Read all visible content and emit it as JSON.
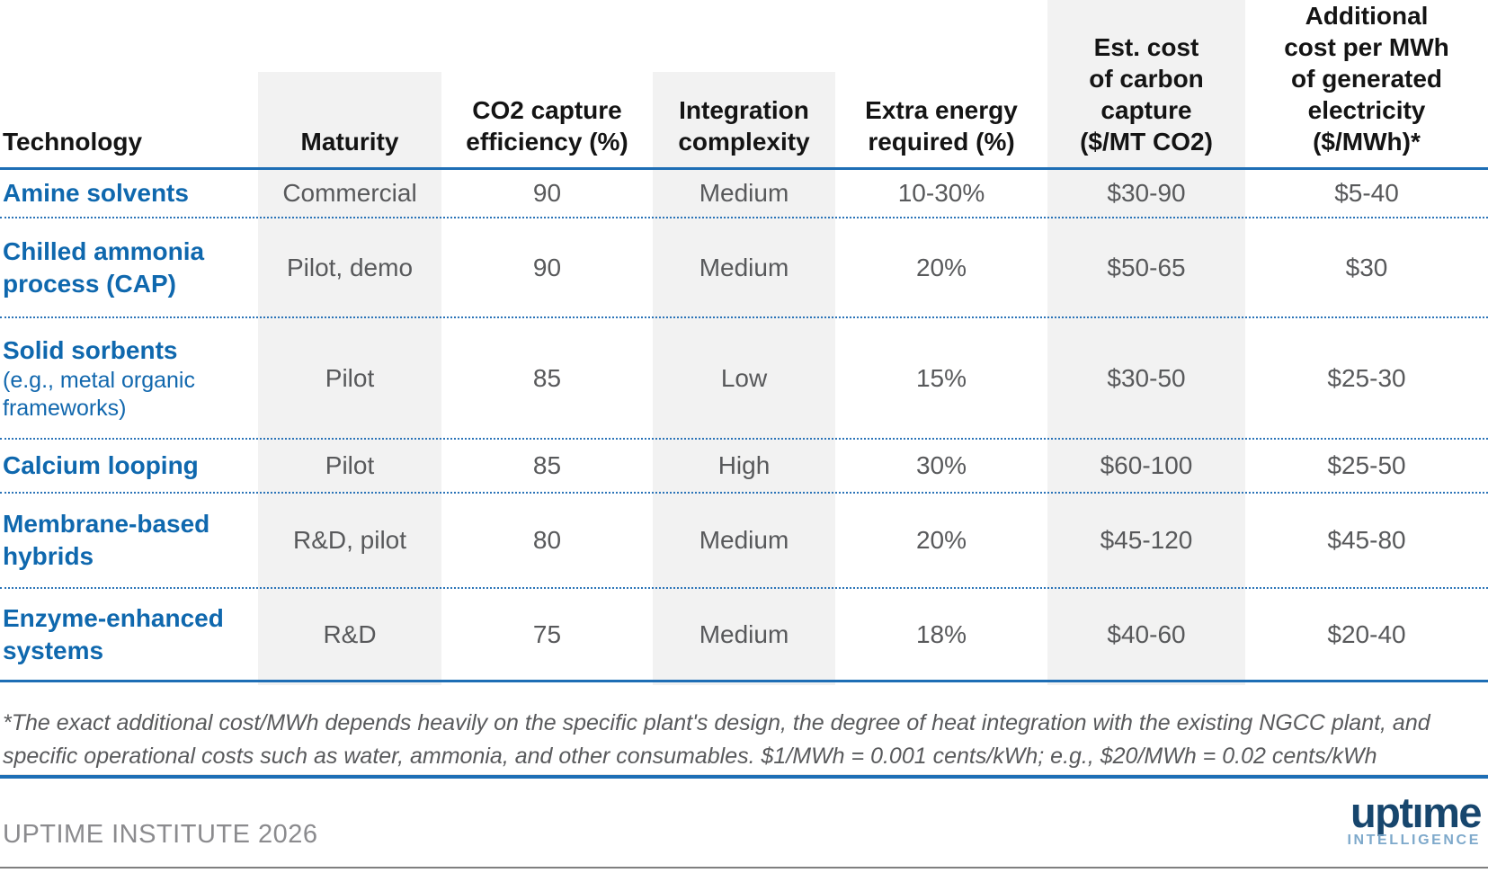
{
  "accent_colors": {
    "line_blue": "#1e6eb5",
    "technology_blue": "#0f68ae",
    "cell_text_gray": "#58595b",
    "stripe_gray": "#f2f2f2",
    "footer_text_gray": "#8b8b8e",
    "logo_navy": "#17466d",
    "logo_light_blue": "#7ea9cb"
  },
  "header": {
    "columns": [
      {
        "label": "Technology"
      },
      {
        "label": "Maturity"
      },
      {
        "label": "CO2 capture\nefficiency (%)"
      },
      {
        "label": "Integration\ncomplexity"
      },
      {
        "label": "Extra energy\nrequired (%)"
      },
      {
        "label": "Est. cost\nof carbon\ncapture\n($/MT CO2)"
      },
      {
        "label": "Additional\ncost per MWh\nof generated\nelectricity\n($/MWh)*"
      }
    ]
  },
  "table": {
    "rows": [
      {
        "technology": "Amine solvents",
        "technology_sub": "",
        "maturity": "Commercial",
        "efficiency": "90",
        "complexity": "Medium",
        "extra_energy": "10-30%",
        "cost_capture": "$30-90",
        "cost_mwh": "$5-40"
      },
      {
        "technology": "Chilled ammonia process (CAP)",
        "technology_sub": "",
        "maturity": "Pilot, demo",
        "efficiency": "90",
        "complexity": "Medium",
        "extra_energy": "20%",
        "cost_capture": "$50-65",
        "cost_mwh": "$30"
      },
      {
        "technology": "Solid sorbents",
        "technology_sub": "(e.g., metal organic frameworks)",
        "maturity": "Pilot",
        "efficiency": "85",
        "complexity": "Low",
        "extra_energy": "15%",
        "cost_capture": "$30-50",
        "cost_mwh": "$25-30"
      },
      {
        "technology": "Calcium looping",
        "technology_sub": "",
        "maturity": "Pilot",
        "efficiency": "85",
        "complexity": "High",
        "extra_energy": "30%",
        "cost_capture": "$60-100",
        "cost_mwh": "$25-50"
      },
      {
        "technology": "Membrane-based hybrids",
        "technology_sub": "",
        "maturity": "R&D, pilot",
        "efficiency": "80",
        "complexity": "Medium",
        "extra_energy": "20%",
        "cost_capture": "$45-120",
        "cost_mwh": "$45-80"
      },
      {
        "technology": "Enzyme-enhanced systems",
        "technology_sub": "",
        "maturity": "R&D",
        "efficiency": "75",
        "complexity": "Medium",
        "extra_energy": "18%",
        "cost_capture": "$40-60",
        "cost_mwh": "$20-40"
      }
    ]
  },
  "chart_data": {
    "type": "table",
    "columns": [
      "Technology",
      "Maturity",
      "CO2 capture efficiency (%)",
      "Integration complexity",
      "Extra energy required (%)",
      "Est. cost of carbon capture ($/MT CO2)",
      "Additional cost per MWh of generated electricity ($/MWh)*"
    ],
    "rows": [
      [
        "Amine solvents",
        "Commercial",
        "90",
        "Medium",
        "10-30%",
        "$30-90",
        "$5-40"
      ],
      [
        "Chilled ammonia process (CAP)",
        "Pilot, demo",
        "90",
        "Medium",
        "20%",
        "$50-65",
        "$30"
      ],
      [
        "Solid sorbents (e.g., metal organic frameworks)",
        "Pilot",
        "85",
        "Low",
        "15%",
        "$30-50",
        "$25-30"
      ],
      [
        "Calcium looping",
        "Pilot",
        "85",
        "High",
        "30%",
        "$60-100",
        "$25-50"
      ],
      [
        "Membrane-based hybrids",
        "R&D, pilot",
        "80",
        "Medium",
        "20%",
        "$45-120",
        "$45-80"
      ],
      [
        "Enzyme-enhanced systems",
        "R&D",
        "75",
        "Medium",
        "18%",
        "$40-60",
        "$20-40"
      ]
    ],
    "footnote": "*The exact additional cost/MWh depends heavily on the specific plant's design, the degree of heat integration with the existing NGCC plant, and specific operational costs such as water, ammonia, and other consumables. $1/MWh = 0.001 cents/kWh; e.g., $20/MWh = 0.02 cents/kWh",
    "source": "UPTIME INSTITUTE 2026"
  },
  "footnote_text": "*The exact additional cost/MWh depends heavily on the specific plant's design, the degree of heat integration with the existing NGCC plant, and specific operational costs such as water, ammonia, and other consumables. $1/MWh = 0.001 cents/kWh; e.g., $20/MWh = 0.02 cents/kWh",
  "footer": {
    "credit": "UPTIME INSTITUTE 2026",
    "logo_primary": "uptıme",
    "logo_secondary": "INTELLIGENCE"
  }
}
